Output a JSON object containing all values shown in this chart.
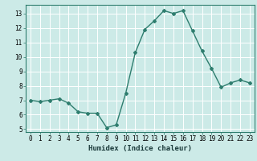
{
  "x": [
    0,
    1,
    2,
    3,
    4,
    5,
    6,
    7,
    8,
    9,
    10,
    11,
    12,
    13,
    14,
    15,
    16,
    17,
    18,
    19,
    20,
    21,
    22,
    23
  ],
  "y": [
    7.0,
    6.9,
    7.0,
    7.1,
    6.8,
    6.2,
    6.1,
    6.1,
    5.1,
    5.3,
    7.5,
    10.3,
    11.9,
    12.5,
    13.2,
    13.0,
    13.2,
    11.8,
    10.4,
    9.2,
    7.9,
    8.2,
    8.4,
    8.2
  ],
  "line_color": "#2e7d6e",
  "marker": "D",
  "marker_size": 2.0,
  "line_width": 1.0,
  "bg_color": "#cceae7",
  "grid_color": "#ffffff",
  "xlabel": "Humidex (Indice chaleur)",
  "ylim": [
    4.8,
    13.6
  ],
  "xlim": [
    -0.5,
    23.5
  ],
  "yticks": [
    5,
    6,
    7,
    8,
    9,
    10,
    11,
    12,
    13
  ],
  "xtick_labels": [
    "0",
    "1",
    "2",
    "3",
    "4",
    "5",
    "6",
    "7",
    "8",
    "9",
    "10",
    "11",
    "12",
    "13",
    "14",
    "15",
    "16",
    "17",
    "18",
    "19",
    "20",
    "21",
    "22",
    "23"
  ],
  "xlabel_fontsize": 6.5,
  "tick_fontsize": 5.5
}
